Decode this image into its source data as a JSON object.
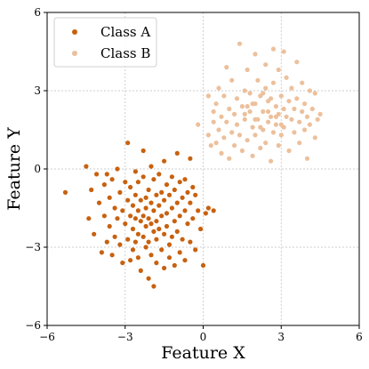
{
  "chart_data": {
    "type": "scatter",
    "title": "",
    "xlabel": "Feature X",
    "ylabel": "Feature Y",
    "xlim": [
      -6,
      6
    ],
    "ylim": [
      -6,
      6
    ],
    "xticks": [
      -6,
      -3,
      0,
      3,
      6
    ],
    "yticks": [
      -6,
      -3,
      0,
      3,
      6
    ],
    "xtick_labels": [
      "−6",
      "−3",
      "0",
      "3",
      "6"
    ],
    "ytick_labels": [
      "−6",
      "−3",
      "0",
      "3",
      "6"
    ],
    "grid": true,
    "legend_position": "top-left",
    "series": [
      {
        "name": "Class A",
        "color": "#c8610f",
        "points": [
          [
            -5.3,
            -0.9
          ],
          [
            -4.5,
            0.1
          ],
          [
            -4.4,
            -1.9
          ],
          [
            -4.3,
            -0.8
          ],
          [
            -4.2,
            -2.5
          ],
          [
            -4.1,
            -0.2
          ],
          [
            -4.0,
            -1.3
          ],
          [
            -3.9,
            -3.2
          ],
          [
            -3.8,
            -0.6
          ],
          [
            -3.8,
            -1.8
          ],
          [
            -3.7,
            -2.8
          ],
          [
            -3.7,
            -0.2
          ],
          [
            -3.6,
            -1.1
          ],
          [
            -3.6,
            -2.2
          ],
          [
            -3.5,
            -0.4
          ],
          [
            -3.5,
            -3.3
          ],
          [
            -3.4,
            -1.5
          ],
          [
            -3.4,
            -2.6
          ],
          [
            -3.3,
            0.0
          ],
          [
            -3.3,
            -1.9
          ],
          [
            -3.2,
            -0.9
          ],
          [
            -3.2,
            -2.9
          ],
          [
            -3.1,
            -1.6
          ],
          [
            -3.1,
            -3.6
          ],
          [
            -3.0,
            -0.5
          ],
          [
            -3.0,
            -2.1
          ],
          [
            -2.9,
            1.0
          ],
          [
            -2.9,
            -1.2
          ],
          [
            -2.9,
            -2.7
          ],
          [
            -2.8,
            -0.7
          ],
          [
            -2.8,
            -1.8
          ],
          [
            -2.8,
            -3.5
          ],
          [
            -2.7,
            -1.4
          ],
          [
            -2.7,
            -2.3
          ],
          [
            -2.7,
            -3.1
          ],
          [
            -2.6,
            -0.1
          ],
          [
            -2.6,
            -1.0
          ],
          [
            -2.6,
            -1.9
          ],
          [
            -2.6,
            -2.8
          ],
          [
            -2.5,
            -0.5
          ],
          [
            -2.5,
            -1.6
          ],
          [
            -2.5,
            -2.5
          ],
          [
            -2.5,
            -3.4
          ],
          [
            -2.4,
            -1.2
          ],
          [
            -2.4,
            -2.0
          ],
          [
            -2.4,
            -3.9
          ],
          [
            -2.3,
            0.7
          ],
          [
            -2.3,
            -0.3
          ],
          [
            -2.3,
            -1.8
          ],
          [
            -2.3,
            -2.6
          ],
          [
            -2.2,
            -1.1
          ],
          [
            -2.2,
            -1.5
          ],
          [
            -2.2,
            -2.2
          ],
          [
            -2.2,
            -3.0
          ],
          [
            -2.1,
            -4.2
          ],
          [
            -2.1,
            -0.8
          ],
          [
            -2.1,
            -1.9
          ],
          [
            -2.1,
            -2.8
          ],
          [
            -2.0,
            0.1
          ],
          [
            -2.0,
            -1.3
          ],
          [
            -2.0,
            -2.1
          ],
          [
            -2.0,
            -3.3
          ],
          [
            -1.9,
            -0.4
          ],
          [
            -1.9,
            -1.6
          ],
          [
            -1.9,
            -2.4
          ],
          [
            -1.9,
            -4.5
          ],
          [
            -1.8,
            -1.0
          ],
          [
            -1.8,
            -2.0
          ],
          [
            -1.8,
            -2.7
          ],
          [
            -1.8,
            -3.6
          ],
          [
            -1.7,
            -0.2
          ],
          [
            -1.7,
            -1.4
          ],
          [
            -1.7,
            -2.3
          ],
          [
            -1.6,
            -0.9
          ],
          [
            -1.6,
            -1.8
          ],
          [
            -1.6,
            -3.1
          ],
          [
            -1.5,
            0.3
          ],
          [
            -1.5,
            -1.2
          ],
          [
            -1.5,
            -2.5
          ],
          [
            -1.5,
            -3.8
          ],
          [
            -1.4,
            -0.6
          ],
          [
            -1.4,
            -1.7
          ],
          [
            -1.4,
            -2.2
          ],
          [
            -1.3,
            -1.0
          ],
          [
            -1.3,
            -2.9
          ],
          [
            -1.3,
            -3.4
          ],
          [
            -1.2,
            -0.3
          ],
          [
            -1.2,
            -1.5
          ],
          [
            -1.2,
            -2.6
          ],
          [
            -1.1,
            -0.8
          ],
          [
            -1.1,
            -2.0
          ],
          [
            -1.1,
            -3.7
          ],
          [
            -1.0,
            0.6
          ],
          [
            -1.0,
            -1.3
          ],
          [
            -1.0,
            -2.4
          ],
          [
            -0.9,
            -0.5
          ],
          [
            -0.9,
            -1.8
          ],
          [
            -0.9,
            -3.2
          ],
          [
            -0.8,
            -1.1
          ],
          [
            -0.8,
            -2.7
          ],
          [
            -0.7,
            -0.4
          ],
          [
            -0.7,
            -1.6
          ],
          [
            -0.7,
            -3.5
          ],
          [
            -0.6,
            -0.9
          ],
          [
            -0.6,
            -2.1
          ],
          [
            -0.5,
            0.4
          ],
          [
            -0.5,
            -1.3
          ],
          [
            -0.5,
            -2.8
          ],
          [
            -0.4,
            -0.7
          ],
          [
            -0.4,
            -1.9
          ],
          [
            -0.3,
            -3.1
          ],
          [
            -0.3,
            -1.0
          ],
          [
            -0.2,
            -1.6
          ],
          [
            0.0,
            -3.7
          ],
          [
            0.1,
            -1.7
          ],
          [
            -0.1,
            -2.3
          ],
          [
            0.2,
            -1.5
          ],
          [
            0.4,
            -1.6
          ]
        ]
      },
      {
        "name": "Class B",
        "color": "#ecc09c",
        "points": [
          [
            -0.2,
            1.7
          ],
          [
            0.2,
            2.8
          ],
          [
            0.2,
            1.3
          ],
          [
            0.3,
            0.9
          ],
          [
            0.4,
            2.2
          ],
          [
            0.4,
            1.8
          ],
          [
            0.5,
            2.5
          ],
          [
            0.5,
            1.0
          ],
          [
            0.6,
            3.1
          ],
          [
            0.6,
            1.5
          ],
          [
            0.7,
            2.0
          ],
          [
            0.7,
            0.6
          ],
          [
            0.8,
            2.8
          ],
          [
            0.8,
            1.2
          ],
          [
            0.9,
            3.9
          ],
          [
            0.9,
            1.8
          ],
          [
            1.0,
            2.3
          ],
          [
            1.0,
            0.4
          ],
          [
            1.1,
            1.4
          ],
          [
            1.1,
            3.4
          ],
          [
            1.2,
            2.1
          ],
          [
            1.2,
            0.9
          ],
          [
            1.3,
            1.7
          ],
          [
            1.3,
            2.7
          ],
          [
            1.4,
            4.8
          ],
          [
            1.4,
            1.3
          ],
          [
            1.5,
            2.4
          ],
          [
            1.5,
            0.7
          ],
          [
            1.6,
            3.0
          ],
          [
            1.6,
            1.9
          ],
          [
            1.7,
            3.8
          ],
          [
            1.7,
            1.1
          ],
          [
            1.8,
            2.2
          ],
          [
            1.8,
            2.9
          ],
          [
            1.9,
            1.6
          ],
          [
            1.9,
            0.5
          ],
          [
            2.0,
            4.4
          ],
          [
            2.0,
            2.5
          ],
          [
            2.0,
            1.3
          ],
          [
            2.1,
            3.4
          ],
          [
            2.1,
            1.9
          ],
          [
            2.2,
            2.8
          ],
          [
            2.2,
            0.8
          ],
          [
            2.3,
            2.2
          ],
          [
            2.3,
            1.5
          ],
          [
            2.4,
            4.0
          ],
          [
            2.4,
            3.1
          ],
          [
            2.4,
            1.0
          ],
          [
            2.5,
            2.6
          ],
          [
            2.5,
            1.8
          ],
          [
            2.6,
            2.0
          ],
          [
            2.6,
            0.3
          ],
          [
            2.7,
            4.6
          ],
          [
            2.7,
            3.3
          ],
          [
            2.7,
            1.4
          ],
          [
            2.8,
            2.4
          ],
          [
            2.8,
            1.7
          ],
          [
            2.9,
            3.8
          ],
          [
            2.9,
            2.1
          ],
          [
            2.9,
            0.9
          ],
          [
            3.0,
            2.8
          ],
          [
            3.0,
            1.3
          ],
          [
            3.1,
            4.5
          ],
          [
            3.1,
            2.3
          ],
          [
            3.1,
            1.6
          ],
          [
            3.2,
            3.5
          ],
          [
            3.2,
            2.0
          ],
          [
            3.3,
            2.6
          ],
          [
            3.3,
            0.7
          ],
          [
            3.4,
            1.9
          ],
          [
            3.4,
            3.1
          ],
          [
            3.5,
            2.3
          ],
          [
            3.5,
            1.4
          ],
          [
            3.6,
            4.1
          ],
          [
            3.6,
            2.7
          ],
          [
            3.7,
            1.8
          ],
          [
            3.7,
            1.0
          ],
          [
            3.8,
            2.2
          ],
          [
            3.8,
            3.3
          ],
          [
            3.9,
            1.5
          ],
          [
            3.9,
            2.5
          ],
          [
            4.0,
            2.0
          ],
          [
            4.0,
            0.4
          ],
          [
            4.1,
            3.0
          ],
          [
            4.1,
            1.7
          ],
          [
            4.2,
            2.3
          ],
          [
            4.3,
            1.2
          ],
          [
            4.3,
            2.9
          ],
          [
            4.4,
            1.9
          ],
          [
            4.5,
            2.1
          ],
          [
            2.2,
            1.6
          ],
          [
            1.9,
            2.5
          ],
          [
            2.5,
            2.2
          ],
          [
            1.6,
            2.1
          ],
          [
            2.8,
            2.0
          ],
          [
            2.0,
            1.9
          ],
          [
            2.6,
            2.7
          ],
          [
            1.7,
            2.4
          ],
          [
            2.3,
            2.9
          ],
          [
            3.0,
            1.7
          ]
        ]
      }
    ]
  }
}
